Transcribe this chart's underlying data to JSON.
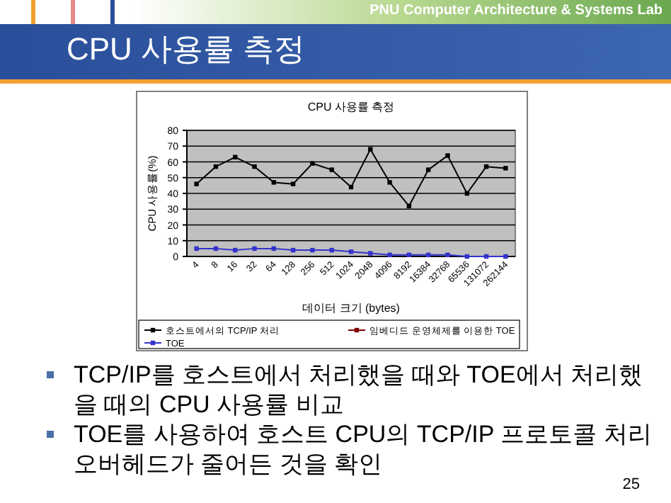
{
  "chart_data": {
    "type": "line",
    "title": "CPU 사용률 측정",
    "xlabel": "데이터 크기 (bytes)",
    "ylabel": "CPU 사용률(%)",
    "categories": [
      "4",
      "8",
      "16",
      "32",
      "64",
      "128",
      "256",
      "512",
      "1024",
      "2048",
      "4096",
      "8192",
      "16384",
      "32768",
      "65536",
      "131072",
      "262144"
    ],
    "series": [
      {
        "name": "호스트에서의 TCP/IP 처리",
        "color": "#000000",
        "values": [
          46,
          57,
          63,
          57,
          47,
          46,
          59,
          55,
          44,
          68,
          47,
          32,
          55,
          64,
          40,
          57,
          56
        ]
      },
      {
        "name": "임베디드 운영체제를 이용한 TOE",
        "color": "#800000",
        "values": [
          null,
          null,
          null,
          null,
          null,
          null,
          null,
          null,
          null,
          null,
          null,
          null,
          null,
          null,
          null,
          null,
          null
        ]
      },
      {
        "name": "TOE",
        "color": "#3333cc",
        "values": [
          5,
          5,
          4,
          5,
          5,
          4,
          4,
          4,
          3,
          2,
          1,
          1,
          1,
          1,
          0,
          0,
          0
        ]
      }
    ],
    "ylim": [
      0,
      80
    ],
    "yticks": [
      0,
      10,
      20,
      30,
      40,
      50,
      60,
      70,
      80
    ],
    "grid": "y",
    "legend": "bottom",
    "marker": "square",
    "annotations": [
      "PNU Computer Architecture & Systems Lab",
      "CPU 사용률 측정",
      "TCP/IP를 호스트에서 처리했을 때와 TOE에서 처리했을 때의 CPU 사용률 비교",
      "TOE를 사용하여 호스트 CPU의 TCP/IP 프로토콜 처리 오버헤드가 줄어든 것을 확인",
      "25"
    ]
  }
}
